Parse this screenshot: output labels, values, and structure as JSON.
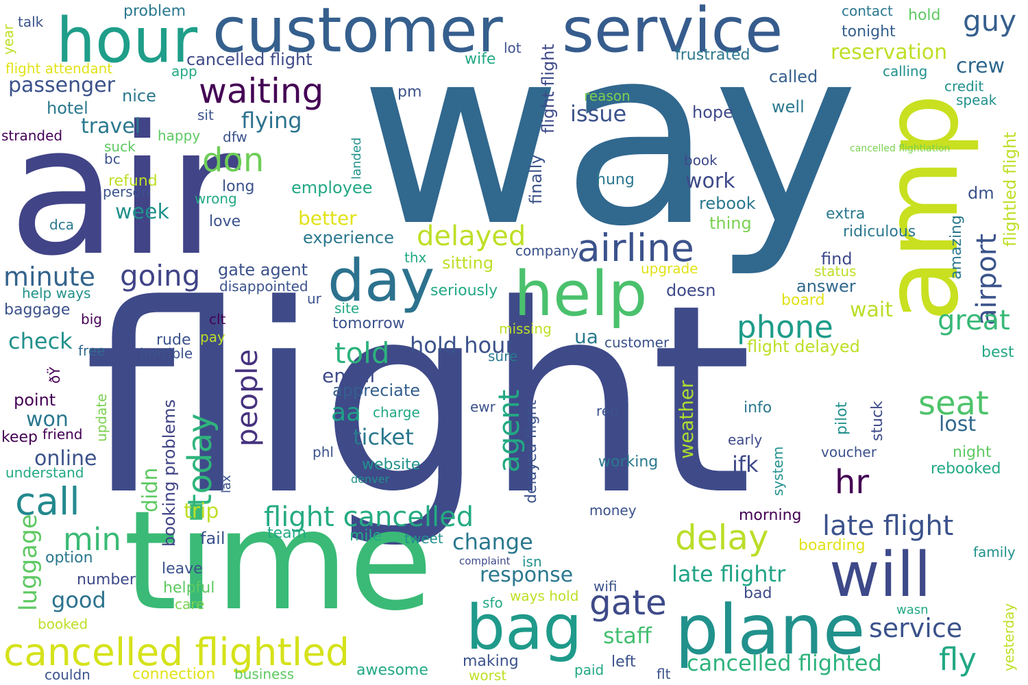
{
  "words": [
    {
      "text": "flight",
      "color": "#3f4a89"
    },
    {
      "text": "way",
      "color": "#31688e"
    },
    {
      "text": "air",
      "color": "#414487"
    },
    {
      "text": "time",
      "color": "#3aba76"
    },
    {
      "text": "customer",
      "color": "#355f8d"
    },
    {
      "text": "service",
      "color": "#365c8d"
    },
    {
      "text": "amp",
      "color": "#c8e020"
    },
    {
      "text": "hour",
      "color": "#1f9e89"
    },
    {
      "text": "help",
      "color": "#4ac16d"
    },
    {
      "text": "plane",
      "color": "#21918c"
    },
    {
      "text": "bag",
      "color": "#1f9a8a"
    },
    {
      "text": "will",
      "color": "#3e4989"
    },
    {
      "text": "day",
      "color": "#2c728e"
    },
    {
      "text": "cancelled flightled",
      "color": "#d5e21a"
    },
    {
      "text": "airline",
      "color": "#3b528b"
    },
    {
      "text": "waiting",
      "color": "#440154"
    },
    {
      "text": "gate",
      "color": "#3e4a89"
    },
    {
      "text": "delay",
      "color": "#bade28"
    },
    {
      "text": "call",
      "color": "#23898e"
    },
    {
      "text": "flight cancelled",
      "color": "#25ab82"
    },
    {
      "text": "late flight",
      "color": "#3b528b"
    },
    {
      "text": "today",
      "color": "#2fb47c"
    },
    {
      "text": "people",
      "color": "#46327e"
    },
    {
      "text": "phone",
      "color": "#1e9c89"
    },
    {
      "text": "going",
      "color": "#414487"
    },
    {
      "text": "seat",
      "color": "#4ec36b"
    },
    {
      "text": "agent",
      "color": "#23a983"
    },
    {
      "text": "airport",
      "color": "#3a538b"
    },
    {
      "text": "time",
      "color": "#3aba76"
    },
    {
      "text": "min",
      "color": "#3bbb75"
    },
    {
      "text": "minute",
      "color": "#33638d"
    },
    {
      "text": "don",
      "color": "#6ece58"
    },
    {
      "text": "great",
      "color": "#38b977"
    },
    {
      "text": "hr",
      "color": "#440154"
    },
    {
      "text": "told",
      "color": "#2db27d"
    },
    {
      "text": "delayed",
      "color": "#bddf26"
    },
    {
      "text": "service",
      "color": "#3b528b"
    },
    {
      "text": "cancelled flighted",
      "color": "#2eb37c"
    },
    {
      "text": "fly",
      "color": "#22a884"
    },
    {
      "text": "customer service",
      "color": "#31688e"
    },
    {
      "text": "ticket",
      "color": "#2a788e"
    },
    {
      "text": "aa",
      "color": "#1fa187"
    },
    {
      "text": "luggage",
      "color": "#5ec962"
    },
    {
      "text": "flying",
      "color": "#2c728e"
    },
    {
      "text": "passenger",
      "color": "#3b528b"
    },
    {
      "text": "travel",
      "color": "#2a788e"
    },
    {
      "text": "guy",
      "color": "#355f8d"
    },
    {
      "text": "reservation",
      "color": "#bddf26"
    },
    {
      "text": "issue",
      "color": "#3b528b"
    },
    {
      "text": "check",
      "color": "#21918c"
    },
    {
      "text": "response",
      "color": "#2a788e"
    },
    {
      "text": "good",
      "color": "#2c728e"
    },
    {
      "text": "late flightr",
      "color": "#20a486"
    },
    {
      "text": "change",
      "color": "#2a788e"
    },
    {
      "text": "staff",
      "color": "#44bf70"
    },
    {
      "text": "hold hour",
      "color": "#3b528b"
    },
    {
      "text": "wait",
      "color": "#bade28"
    },
    {
      "text": "crew",
      "color": "#31688e"
    },
    {
      "text": "lost",
      "color": "#31688e"
    },
    {
      "text": "week",
      "color": "#21918c"
    },
    {
      "text": "won",
      "color": "#2a788e"
    },
    {
      "text": "online",
      "color": "#3b528b"
    },
    {
      "text": "email",
      "color": "#3e4a89"
    },
    {
      "text": "trip",
      "color": "#bddf26"
    },
    {
      "text": "work",
      "color": "#3e4a89"
    },
    {
      "text": "jfk",
      "color": "#3e4a89"
    },
    {
      "text": "better",
      "color": "#e1e219"
    },
    {
      "text": "cancelled flight",
      "color": "#3e4a89"
    },
    {
      "text": "weather",
      "color": "#addc30"
    },
    {
      "text": "flight flight",
      "color": "#3e4a89"
    },
    {
      "text": "ua",
      "color": "#2a788e"
    },
    {
      "text": "booking problems",
      "color": "#414487"
    },
    {
      "text": "didn",
      "color": "#5ec962"
    },
    {
      "text": "delayed flight",
      "color": "#3b528b"
    },
    {
      "text": "flightled flight",
      "color": "#bddf26"
    },
    {
      "text": "appreciate",
      "color": "#355f8d"
    },
    {
      "text": "sitting",
      "color": "#bddf26"
    },
    {
      "text": "experience",
      "color": "#2a788e"
    },
    {
      "text": "employee",
      "color": "#22a884"
    },
    {
      "text": "rebook",
      "color": "#2a788e"
    },
    {
      "text": "hotel",
      "color": "#2a788e"
    },
    {
      "text": "nice",
      "color": "#2a788e"
    },
    {
      "text": "gate agent",
      "color": "#3b528b"
    },
    {
      "text": "disappointed",
      "color": "#3b528b"
    },
    {
      "text": "finally",
      "color": "#3b528b"
    },
    {
      "text": "tomorrow",
      "color": "#3b528b"
    },
    {
      "text": "called",
      "color": "#355f8d"
    },
    {
      "text": "tonight",
      "color": "#355f8d"
    },
    {
      "text": "frustrated",
      "color": "#2a788e"
    },
    {
      "text": "calling",
      "color": "#21918c"
    },
    {
      "text": "credit",
      "color": "#21918c"
    },
    {
      "text": "speak",
      "color": "#21918c"
    },
    {
      "text": "hope",
      "color": "#3e4a89"
    },
    {
      "text": "well",
      "color": "#2a788e"
    },
    {
      "text": "hung",
      "color": "#2a788e"
    },
    {
      "text": "book",
      "color": "#3e4a89"
    },
    {
      "text": "amazing",
      "color": "#2a788e"
    },
    {
      "text": "dm",
      "color": "#3b528b"
    },
    {
      "text": "extra",
      "color": "#2a788e"
    },
    {
      "text": "ridiculous",
      "color": "#2a788e"
    },
    {
      "text": "thing",
      "color": "#7ad151"
    },
    {
      "text": "find",
      "color": "#3e4a89"
    },
    {
      "text": "status",
      "color": "#bddf26"
    },
    {
      "text": "answer",
      "color": "#31688e"
    },
    {
      "text": "board",
      "color": "#e1e219"
    },
    {
      "text": "doesn",
      "color": "#3e4a89"
    },
    {
      "text": "seriously",
      "color": "#22a884"
    },
    {
      "text": "upgrade",
      "color": "#e1e219"
    },
    {
      "text": "company",
      "color": "#3b528b"
    },
    {
      "text": "flight delayed",
      "color": "#bddf26"
    },
    {
      "text": "customer",
      "color": "#3b528b"
    },
    {
      "text": "best",
      "color": "#22a884"
    },
    {
      "text": "missing",
      "color": "#bddf26"
    },
    {
      "text": "sure",
      "color": "#2a788e"
    },
    {
      "text": "rep",
      "color": "#3b528b"
    },
    {
      "text": "info",
      "color": "#2a788e"
    },
    {
      "text": "pilot",
      "color": "#21918c"
    },
    {
      "text": "stuck",
      "color": "#3e4a89"
    },
    {
      "text": "early",
      "color": "#3e4a89"
    },
    {
      "text": "system",
      "color": "#21918c"
    },
    {
      "text": "voucher",
      "color": "#3b528b"
    },
    {
      "text": "night",
      "color": "#5ec962"
    },
    {
      "text": "rebooked",
      "color": "#22a884"
    },
    {
      "text": "working",
      "color": "#2a788e"
    },
    {
      "text": "money",
      "color": "#3b528b"
    },
    {
      "text": "morning",
      "color": "#440154"
    },
    {
      "text": "boarding",
      "color": "#e1e219"
    },
    {
      "text": "family",
      "color": "#21918c"
    },
    {
      "text": "yesterday",
      "color": "#bddf26"
    },
    {
      "text": "wasn",
      "color": "#22a884"
    },
    {
      "text": "bad",
      "color": "#3e4a89"
    },
    {
      "text": "wifi",
      "color": "#3b528b"
    },
    {
      "text": "ways hold",
      "color": "#bddf26"
    },
    {
      "text": "sfo",
      "color": "#22a884"
    },
    {
      "text": "making",
      "color": "#3b528b"
    },
    {
      "text": "paid",
      "color": "#22a884"
    },
    {
      "text": "left",
      "color": "#3b528b"
    },
    {
      "text": "flt",
      "color": "#3b528b"
    },
    {
      "text": "worst",
      "color": "#bddf26"
    },
    {
      "text": "awesome",
      "color": "#22a884"
    },
    {
      "text": "business",
      "color": "#5ec962"
    },
    {
      "text": "connection",
      "color": "#e1e219"
    },
    {
      "text": "couldn",
      "color": "#3b528b"
    },
    {
      "text": "booked",
      "color": "#bddf26"
    },
    {
      "text": "care",
      "color": "#7ad151"
    },
    {
      "text": "helpful",
      "color": "#5ec962"
    },
    {
      "text": "leave",
      "color": "#3b528b"
    },
    {
      "text": "number",
      "color": "#3e4a89"
    },
    {
      "text": "option",
      "color": "#2a788e"
    },
    {
      "text": "fail",
      "color": "#3b528b"
    },
    {
      "text": "team",
      "color": "#22a884"
    },
    {
      "text": "mile",
      "color": "#22a884"
    },
    {
      "text": "tweet",
      "color": "#21918c"
    },
    {
      "text": "isn",
      "color": "#21918c"
    },
    {
      "text": "complaint",
      "color": "#3e4a89"
    },
    {
      "text": "lax",
      "color": "#3b528b"
    },
    {
      "text": "denver",
      "color": "#21918c"
    },
    {
      "text": "website",
      "color": "#21918c"
    },
    {
      "text": "phl",
      "color": "#3b528b"
    },
    {
      "text": "ewr",
      "color": "#3b528b"
    },
    {
      "text": "charge",
      "color": "#22a884"
    },
    {
      "text": "understand",
      "color": "#22a884"
    },
    {
      "text": "keep",
      "color": "#440154"
    },
    {
      "text": "friend",
      "color": "#440154"
    },
    {
      "text": "point",
      "color": "#440154"
    },
    {
      "text": "update",
      "color": "#7ad151"
    },
    {
      "text": "ðŸ",
      "color": "#440154"
    },
    {
      "text": "free",
      "color": "#31688e"
    },
    {
      "text": "horrible",
      "color": "#3b528b"
    },
    {
      "text": "rude",
      "color": "#3b528b"
    },
    {
      "text": "pay",
      "color": "#bddf26"
    },
    {
      "text": "clt",
      "color": "#440154"
    },
    {
      "text": "big",
      "color": "#440154"
    },
    {
      "text": "baggage",
      "color": "#3b528b"
    },
    {
      "text": "help ways",
      "color": "#21918c"
    },
    {
      "text": "ur",
      "color": "#3b528b"
    },
    {
      "text": "site",
      "color": "#22a884"
    },
    {
      "text": "thx",
      "color": "#22a884"
    },
    {
      "text": "love",
      "color": "#3b528b"
    },
    {
      "text": "dca",
      "color": "#2a788e"
    },
    {
      "text": "wrong",
      "color": "#22a884"
    },
    {
      "text": "long",
      "color": "#3b528b"
    },
    {
      "text": "person",
      "color": "#3b528b"
    },
    {
      "text": "refund",
      "color": "#bddf26"
    },
    {
      "text": "bc",
      "color": "#3b528b"
    },
    {
      "text": "suck",
      "color": "#5ec962"
    },
    {
      "text": "happy",
      "color": "#5ec962"
    },
    {
      "text": "dfw",
      "color": "#3b528b"
    },
    {
      "text": "stranded",
      "color": "#440154"
    },
    {
      "text": "sit",
      "color": "#3b528b"
    },
    {
      "text": "landed",
      "color": "#21918c"
    },
    {
      "text": "pm",
      "color": "#3b528b"
    },
    {
      "text": "lot",
      "color": "#3b528b"
    },
    {
      "text": "wife",
      "color": "#22a884"
    },
    {
      "text": "app",
      "color": "#22a884"
    },
    {
      "text": "flight attendant",
      "color": "#e1e219"
    },
    {
      "text": "year",
      "color": "#bddf26"
    },
    {
      "text": "talk",
      "color": "#3b528b"
    },
    {
      "text": "problem",
      "color": "#2a788e"
    },
    {
      "text": "contact",
      "color": "#2a788e"
    },
    {
      "text": "hold",
      "color": "#5ec962"
    },
    {
      "text": "reason",
      "color": "#7ad151"
    },
    {
      "text": "cancelled flightlation",
      "color": "#7ad151"
    }
  ]
}
